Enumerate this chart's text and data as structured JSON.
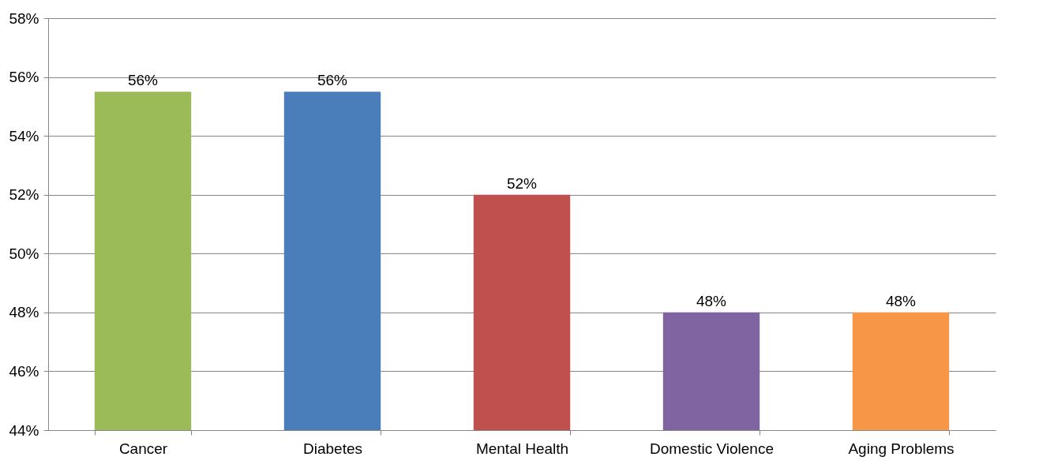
{
  "chart_data": {
    "type": "bar",
    "categories": [
      "Cancer",
      "Diabetes",
      "Mental Health",
      "Domestic Violence",
      "Aging Problems"
    ],
    "values": [
      55.5,
      55.5,
      52,
      48,
      48
    ],
    "colors": [
      "#9bbb59",
      "#4a7ebb",
      "#c0504d",
      "#8064a2",
      "#f79646"
    ],
    "value_labels": [
      "56%",
      "56%",
      "52%",
      "48%",
      "48%"
    ],
    "ylim": [
      44,
      58
    ],
    "yticks": [
      {
        "value": 44,
        "label": "44%"
      },
      {
        "value": 46,
        "label": "46%"
      },
      {
        "value": 48,
        "label": "48%"
      },
      {
        "value": 50,
        "label": "50%"
      },
      {
        "value": 52,
        "label": "52%"
      },
      {
        "value": 54,
        "label": "54%"
      },
      {
        "value": 56,
        "label": "56%"
      },
      {
        "value": 58,
        "label": "58%"
      }
    ],
    "grid": "y"
  }
}
